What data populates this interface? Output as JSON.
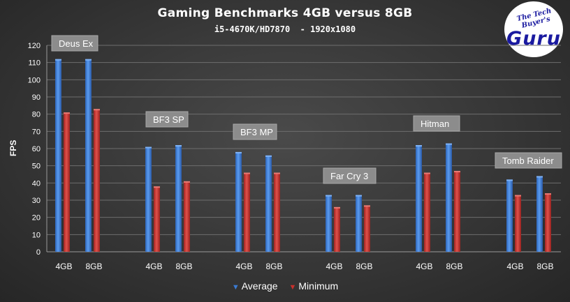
{
  "chart_data": {
    "type": "bar",
    "title": "Gaming Benchmarks 4GB versus 8GB",
    "subtitle": "i5-4670K/HD7870  - 1920x1080",
    "ylabel": "FPS",
    "ylim": [
      0,
      120
    ],
    "yticks": [
      0,
      10,
      20,
      30,
      40,
      50,
      60,
      70,
      80,
      90,
      100,
      110,
      120
    ],
    "grid": true,
    "legend_position": "bottom",
    "categories": [
      "4GB",
      "8GB",
      "4GB",
      "8GB",
      "4GB",
      "8GB",
      "4GB",
      "8GB",
      "4GB",
      "8GB",
      "4GB",
      "8GB"
    ],
    "groups": [
      "Deus Ex",
      "BF3 SP",
      "BF3 MP",
      "Far Cry 3",
      "Hitman",
      "Tomb Raider"
    ],
    "series": [
      {
        "name": "Average",
        "color": "#3b7bd4",
        "values": [
          112,
          112,
          61,
          62,
          58,
          56,
          33,
          33,
          62,
          63,
          42,
          44
        ]
      },
      {
        "name": "Minimum",
        "color": "#c9302c",
        "values": [
          81,
          83,
          38,
          41,
          46,
          46,
          26,
          27,
          46,
          47,
          33,
          34
        ]
      }
    ]
  },
  "logo": {
    "small_text": "The Tech Buyer's",
    "big_text": "Guru"
  }
}
